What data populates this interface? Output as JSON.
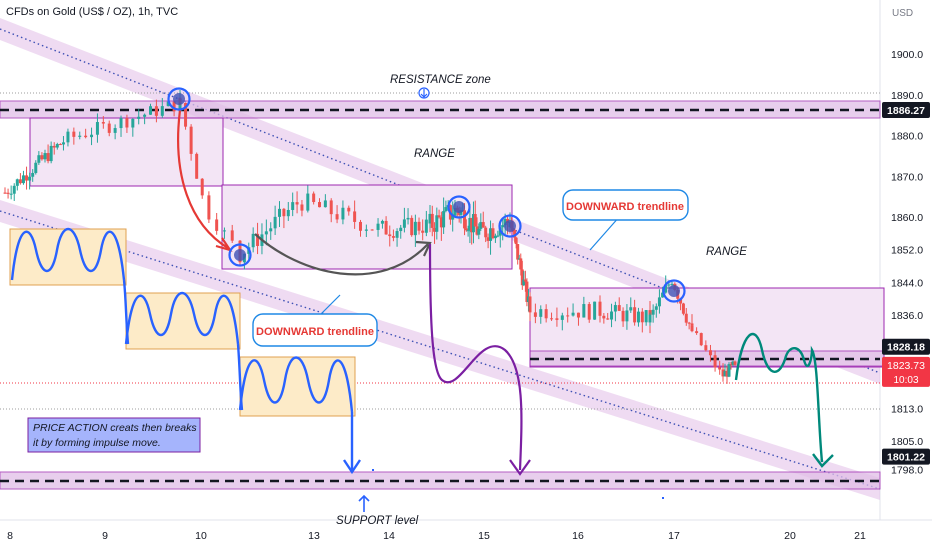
{
  "header": {
    "symbol": "CFDs on Gold (US$ / OZ), 1h, TVC",
    "currency": "USD"
  },
  "colors": {
    "up": "#26a69a",
    "down": "#ef5350",
    "channel_fill": "#e1bee7",
    "zone_fill": "#f3e5f5",
    "zone_border": "#9c27b0",
    "dotted": "#3f51b5",
    "red_arrow": "#e53935",
    "purple_arrow": "#7b1fa2",
    "blue_wave": "#2962ff",
    "teal_wave": "#00897b",
    "gray_curve": "#616161",
    "orange_box": "#fdebc8",
    "price_tag": "#f23645",
    "level_tag": "#131722",
    "note_fill": "#a5b4fc"
  },
  "annotations": {
    "resistance_zone": "RESISTANCE zone",
    "range_1": "RANGE",
    "range_2": "RANGE",
    "downward_trendline_1": "DOWNWARD trendline",
    "downward_trendline_2": "DOWNWARD trendline",
    "support_level": "SUPPORT level",
    "price_action_note_line1": "PRICE  ACTION creats then breaks",
    "price_action_note_line2": "it by forming impulse move."
  },
  "chart_data": {
    "type": "candlestick",
    "title": "CFDs on Gold (US$ / OZ), 1h, TVC",
    "ylabel": "USD",
    "ylim": [
      1794.5,
      1908
    ],
    "y_ticks": [
      1900.0,
      1890.0,
      1880.0,
      1870.0,
      1860.0,
      1852.0,
      1844.0,
      1836.0,
      1813.0,
      1805.0,
      1798.0
    ],
    "x_ticks": [
      "8",
      "9",
      "10",
      "13",
      "14",
      "15",
      "16",
      "17",
      "20",
      "21"
    ],
    "levels": [
      {
        "label": "1886.27",
        "value": 1886.27,
        "style": "dashed"
      },
      {
        "label": "1828.18",
        "value": 1828.18,
        "style": "dashed"
      },
      {
        "label": "1801.22",
        "value": 1801.22,
        "style": "dashed"
      }
    ],
    "current_price": {
      "label": "1823.73",
      "value": 1823.73,
      "countdown": "10:03"
    },
    "segments": [
      {
        "from": 0,
        "to": 40,
        "x": [
          5,
          65,
          180
        ],
        "y": [
          1866,
          1879,
          1888
        ],
        "amp": 3.8
      },
      {
        "from": 40,
        "to": 50,
        "x": [
          180,
          205,
          240
        ],
        "y": [
          1888,
          1862,
          1851
        ],
        "amp": 3.5
      },
      {
        "from": 50,
        "to": 92,
        "x": [
          240,
          300,
          380,
          430
        ],
        "y": [
          1851,
          1864,
          1857,
          1858
        ],
        "amp": 5
      },
      {
        "from": 92,
        "to": 130,
        "x": [
          430,
          458,
          480,
          510
        ],
        "y": [
          1858,
          1862,
          1856,
          1859
        ],
        "amp": 6
      },
      {
        "from": 130,
        "to": 170,
        "x": [
          510,
          530,
          600,
          650
        ],
        "y": [
          1859,
          1837,
          1837,
          1835
        ],
        "amp": 4.5
      },
      {
        "from": 170,
        "to": 185,
        "x": [
          650,
          672,
          692
        ],
        "y": [
          1835,
          1845,
          1832
        ],
        "amp": 4
      },
      {
        "from": 185,
        "to": 199,
        "x": [
          692,
          722,
          735
        ],
        "y": [
          1832,
          1821,
          1823.73
        ],
        "amp": 3
      }
    ]
  }
}
